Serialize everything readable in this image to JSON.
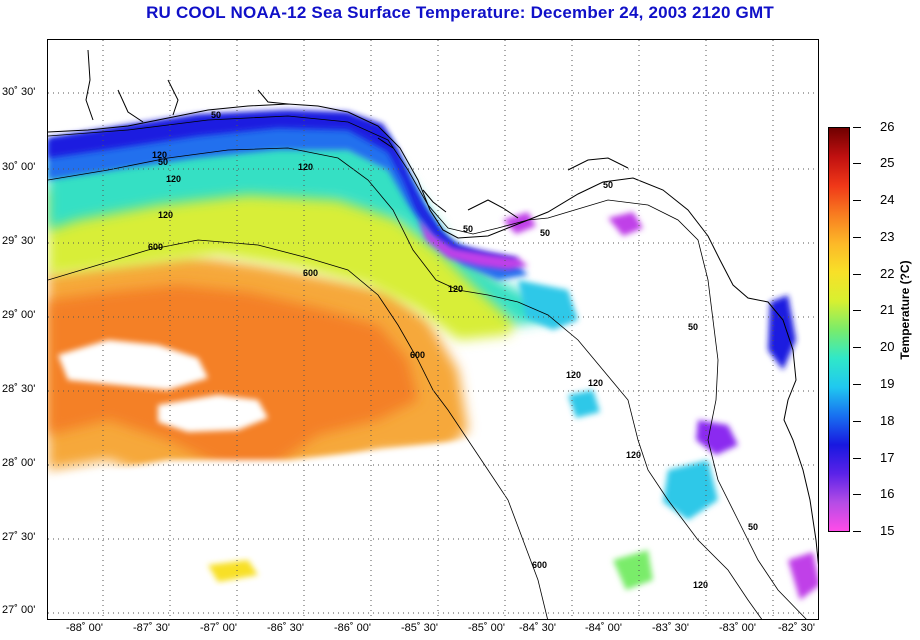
{
  "title": "RU COOL  NOAA-12  Sea Surface Temperature:  December 24, 2003 2120 GMT",
  "map": {
    "lat_labels": [
      "30˚ 30'",
      "30˚ 00'",
      "29˚ 30'",
      "29˚ 00'",
      "28˚ 30'",
      "28˚ 00'",
      "27˚ 30'",
      "27˚ 00'"
    ],
    "lon_labels": [
      "-88˚ 00'",
      "-87˚ 30'",
      "-87˚ 00'",
      "-86˚ 30'",
      "-86˚ 00'",
      "-85˚ 30'",
      "-85˚ 00'",
      "-84˚ 30'",
      "-84˚ 00'",
      "-83˚ 30'",
      "-83˚ 00'",
      "-82˚ 30'"
    ],
    "contour_labels": [
      "50",
      "50",
      "50",
      "50",
      "50",
      "50",
      "120",
      "120",
      "120",
      "120",
      "120",
      "120",
      "120",
      "120",
      "600",
      "600",
      "600",
      "600",
      "120",
      "50"
    ]
  },
  "colorbar": {
    "title": "Temperature (?C)",
    "min": 15,
    "max": 26,
    "tick_labels": [
      "26",
      "25",
      "24",
      "23",
      "22",
      "21",
      "20",
      "19",
      "18",
      "17",
      "16",
      "15"
    ]
  },
  "colors": {
    "title": "#1010c8",
    "scale": [
      "#ff4ce8",
      "#b44ce6",
      "#5a22e8",
      "#1818e0",
      "#1870f0",
      "#20c8f0",
      "#30e8c8",
      "#7aec6a",
      "#d8f030",
      "#f8e028",
      "#fcb828",
      "#f87c20",
      "#f03818",
      "#c01010",
      "#700000"
    ]
  }
}
